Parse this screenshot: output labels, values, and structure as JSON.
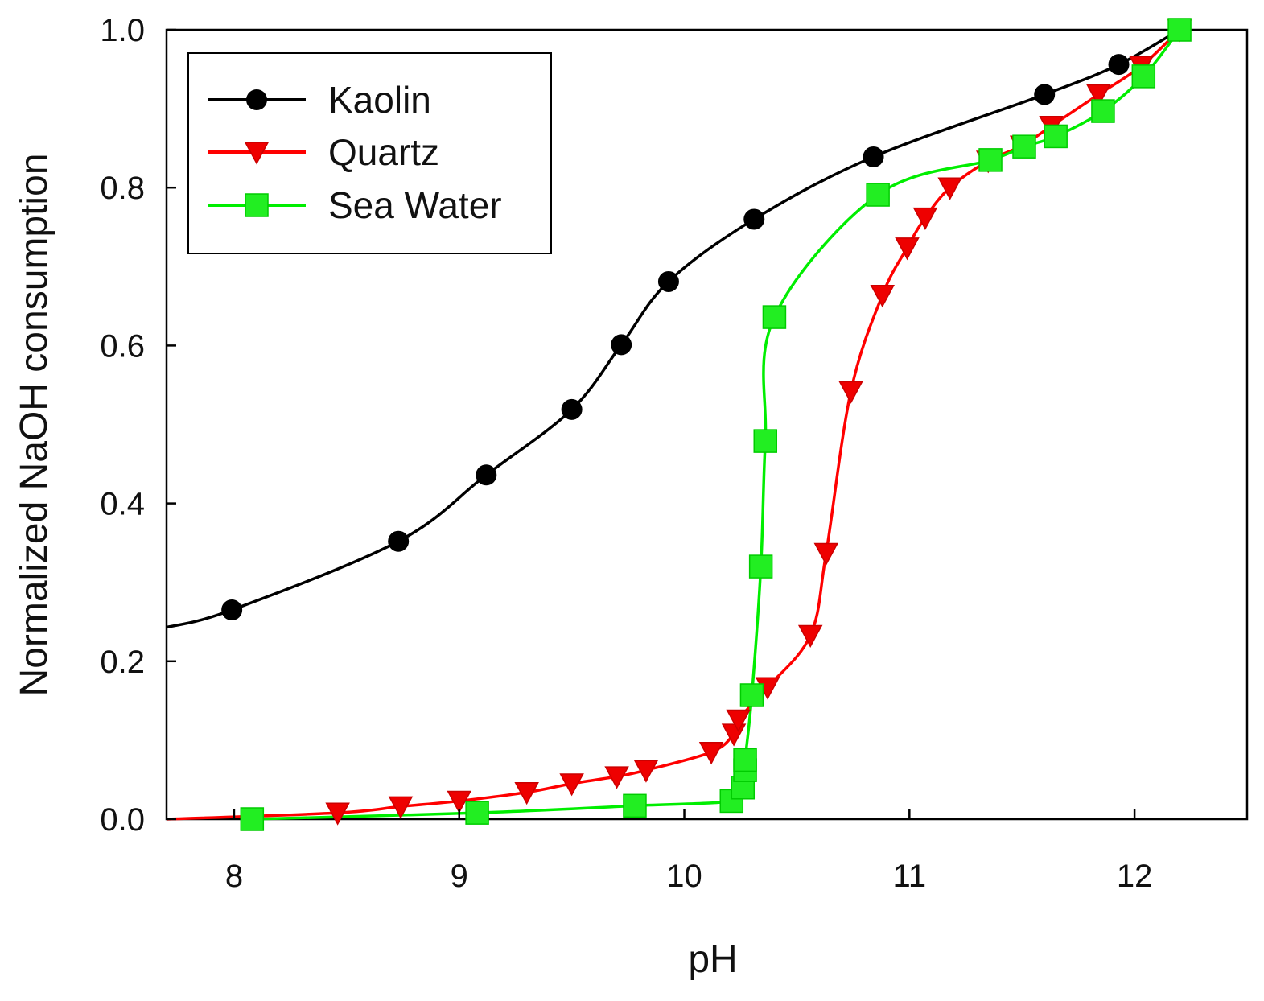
{
  "chart_data": {
    "type": "line",
    "title": "",
    "xlabel": "pH",
    "ylabel": "Normalized NaOH consumption",
    "xlim": [
      7.7,
      12.5
    ],
    "ylim": [
      0.0,
      1.0
    ],
    "xticks": [
      8,
      9,
      10,
      11,
      12
    ],
    "xtick_labels": [
      "8",
      "9",
      "10",
      "11",
      "12"
    ],
    "yticks": [
      0.0,
      0.2,
      0.4,
      0.6,
      0.8,
      1.0
    ],
    "ytick_labels": [
      "0.0",
      "0.2",
      "0.4",
      "0.6",
      "0.8",
      "1.0"
    ],
    "grid": false,
    "legend_position": "top-left",
    "series": [
      {
        "name": "Kaolin",
        "color": "#000000",
        "marker": "circle",
        "x": [
          7.7,
          7.99,
          8.73,
          9.12,
          9.5,
          9.72,
          9.93,
          10.31,
          10.84,
          11.6,
          11.93,
          12.2
        ],
        "y": [
          0.243,
          0.265,
          0.352,
          0.436,
          0.519,
          0.601,
          0.681,
          0.76,
          0.839,
          0.918,
          0.956,
          1.0
        ],
        "marker_count": 11
      },
      {
        "name": "Quartz",
        "color": "#ff0000",
        "marker": "triangle-down",
        "x": [
          7.7,
          8.46,
          8.74,
          9.0,
          9.3,
          9.5,
          9.7,
          9.83,
          10.12,
          10.22,
          10.24,
          10.37,
          10.56,
          10.63,
          10.74,
          10.88,
          10.99,
          11.07,
          11.18,
          11.35,
          11.5,
          11.63,
          11.84,
          12.03,
          12.2
        ],
        "y": [
          0.0,
          0.008,
          0.016,
          0.023,
          0.034,
          0.045,
          0.054,
          0.062,
          0.085,
          0.108,
          0.126,
          0.167,
          0.233,
          0.337,
          0.542,
          0.664,
          0.724,
          0.762,
          0.8,
          0.834,
          0.853,
          0.878,
          0.918,
          0.954,
          1.0
        ],
        "marker_count": 24
      },
      {
        "name": "Sea Water",
        "color": "#00ee00",
        "marker": "square",
        "x": [
          8.08,
          9.08,
          9.78,
          10.21,
          10.26,
          10.27,
          10.27,
          10.3,
          10.34,
          10.36,
          10.4,
          10.86,
          11.36,
          11.51,
          11.65,
          11.86,
          12.04,
          12.2
        ],
        "y": [
          0.0,
          0.008,
          0.017,
          0.023,
          0.04,
          0.062,
          0.075,
          0.157,
          0.32,
          0.479,
          0.636,
          0.791,
          0.835,
          0.852,
          0.865,
          0.897,
          0.941,
          1.0
        ],
        "marker_count": 18
      }
    ]
  }
}
